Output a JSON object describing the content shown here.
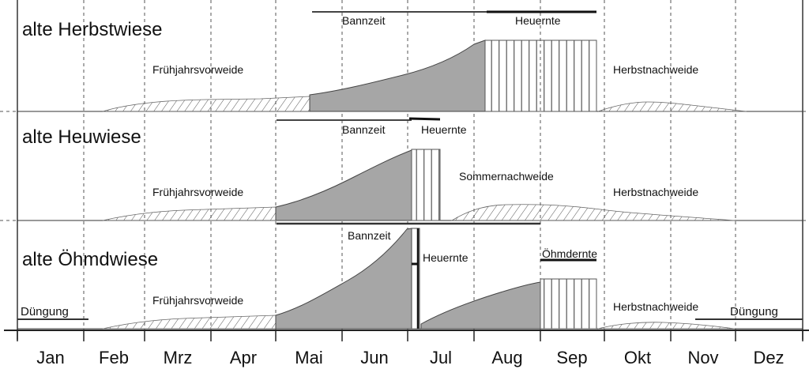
{
  "months": [
    "Jan",
    "Feb",
    "Mrz",
    "Apr",
    "Mai",
    "Jun",
    "Jul",
    "Aug",
    "Sep",
    "Okt",
    "Nov",
    "Dez"
  ],
  "rows": [
    {
      "title": "alte Herbstwiese",
      "labels": {
        "fruehjahr": "Frühjahrsvorweide",
        "bannzeit": "Bannzeit",
        "heuernte": "Heuernte",
        "herbst": "Herbstnachweide"
      }
    },
    {
      "title": "alte Heuwiese",
      "labels": {
        "fruehjahr": "Frühjahrsvorweide",
        "bannzeit": "Bannzeit",
        "heuernte": "Heuernte",
        "sommer": "Sommernachweide",
        "herbst": "Herbstnachweide"
      }
    },
    {
      "title": "alte Öhmdwiese",
      "labels": {
        "duengung_jan": "Düngung",
        "fruehjahr": "Frühjahrsvorweide",
        "bannzeit": "Bannzeit",
        "heuernte": "Heuernte",
        "oehmdernte": "Öhmdernte",
        "herbst": "Herbstnachweide",
        "duengung_nov": "Düngung"
      }
    }
  ],
  "colors": {
    "growth_fill": "#a6a6a6",
    "line": "#333333",
    "hatch": "#555555"
  }
}
